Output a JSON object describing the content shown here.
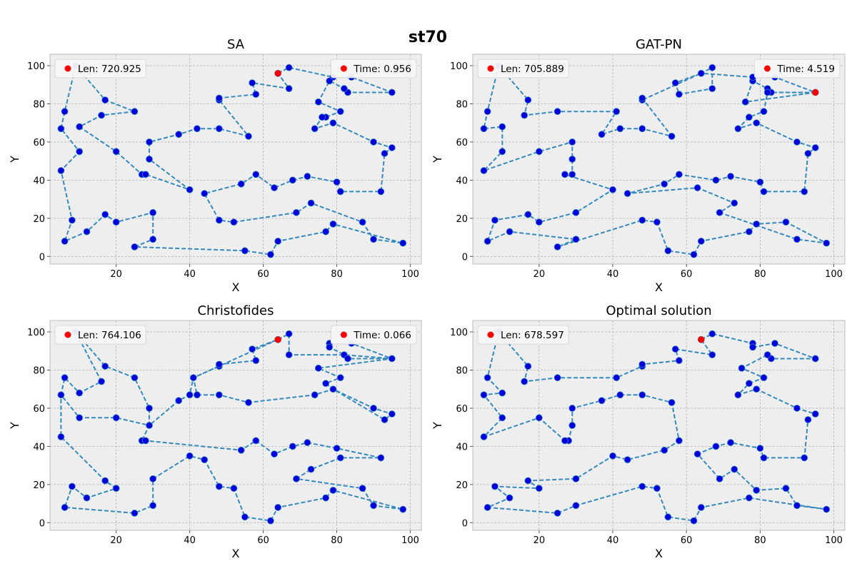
{
  "figure": {
    "suptitle": "st70",
    "colors": {
      "axes_bg": "#EEEEEE",
      "grid": "#B5B5B5",
      "spine": "#BCBCBC",
      "route": "#348ABD",
      "city": "#0000DD",
      "depot": "#FF0000",
      "legend_bg": "#F7F7F7",
      "text": "#000000"
    }
  },
  "chart_data": [
    {
      "type": "scatter",
      "title": "SA",
      "xlabel": "X",
      "ylabel": "Y",
      "xlim": [
        2,
        103
      ],
      "ylim": [
        -4,
        106
      ],
      "xticks": [
        20,
        40,
        60,
        80,
        100
      ],
      "yticks": [
        0,
        20,
        40,
        60,
        80,
        100
      ],
      "grid": true,
      "legend": [
        {
          "label": "Len: 720.925",
          "placement": "upper-left"
        },
        {
          "label": "Time: 0.956",
          "placement": "upper-right"
        }
      ],
      "depot": [
        64,
        96
      ],
      "route": [
        [
          64,
          96
        ],
        [
          67,
          99
        ],
        [
          79,
          94
        ],
        [
          84,
          94
        ],
        [
          95,
          86
        ],
        [
          83,
          86
        ],
        [
          82,
          88
        ],
        [
          78,
          92
        ],
        [
          75,
          81
        ],
        [
          81,
          76
        ],
        [
          77,
          73
        ],
        [
          76,
          73
        ],
        [
          74,
          67
        ],
        [
          79,
          70
        ],
        [
          90,
          60
        ],
        [
          95,
          57
        ],
        [
          93,
          54
        ],
        [
          92,
          34
        ],
        [
          81,
          34
        ],
        [
          80,
          39
        ],
        [
          72,
          42
        ],
        [
          68,
          40
        ],
        [
          63,
          36
        ],
        [
          58,
          43
        ],
        [
          54,
          38
        ],
        [
          44,
          33
        ],
        [
          48,
          19
        ],
        [
          52,
          18
        ],
        [
          69,
          23
        ],
        [
          73,
          28
        ],
        [
          87,
          18
        ],
        [
          90,
          9
        ],
        [
          98,
          7
        ],
        [
          79,
          17
        ],
        [
          77,
          13
        ],
        [
          64,
          8
        ],
        [
          62,
          1
        ],
        [
          55,
          3
        ],
        [
          25,
          5
        ],
        [
          30,
          9
        ],
        [
          30,
          23
        ],
        [
          20,
          18
        ],
        [
          17,
          22
        ],
        [
          12,
          13
        ],
        [
          6,
          8
        ],
        [
          8,
          19
        ],
        [
          5,
          45
        ],
        [
          10,
          55
        ],
        [
          5,
          67
        ],
        [
          6,
          76
        ],
        [
          9,
          100
        ],
        [
          17,
          82
        ],
        [
          25,
          76
        ],
        [
          16,
          74
        ],
        [
          10,
          68
        ],
        [
          20,
          55
        ],
        [
          27,
          43
        ],
        [
          28,
          43
        ],
        [
          40,
          35
        ],
        [
          29,
          51
        ],
        [
          29,
          60
        ],
        [
          37,
          64
        ],
        [
          42,
          67
        ],
        [
          48,
          67
        ],
        [
          56,
          63
        ],
        [
          48,
          82
        ],
        [
          48,
          83
        ],
        [
          58,
          85
        ],
        [
          57,
          91
        ],
        [
          67,
          88
        ],
        [
          64,
          96
        ]
      ]
    },
    {
      "type": "scatter",
      "title": "GAT-PN",
      "xlabel": "X",
      "ylabel": "Y",
      "xlim": [
        2,
        103
      ],
      "ylim": [
        -4,
        106
      ],
      "xticks": [
        20,
        40,
        60,
        80,
        100
      ],
      "yticks": [
        0,
        20,
        40,
        60,
        80,
        100
      ],
      "grid": true,
      "legend": [
        {
          "label": "Len: 705.889",
          "placement": "upper-left"
        },
        {
          "label": "Time: 4.519",
          "placement": "upper-right"
        }
      ],
      "depot": [
        95,
        86
      ],
      "route": [
        [
          95,
          86
        ],
        [
          83,
          86
        ],
        [
          82,
          88
        ],
        [
          78,
          92
        ],
        [
          78,
          94
        ],
        [
          84,
          94
        ],
        [
          95,
          86
        ],
        [
          76,
          81
        ],
        [
          78,
          92
        ],
        [
          78,
          94
        ],
        [
          64,
          96
        ],
        [
          67,
          99
        ],
        [
          67,
          88
        ],
        [
          58,
          85
        ],
        [
          57,
          91
        ],
        [
          64,
          96
        ],
        [
          48,
          82
        ],
        [
          48,
          83
        ],
        [
          56,
          63
        ],
        [
          48,
          67
        ],
        [
          42,
          67
        ],
        [
          37,
          64
        ],
        [
          41,
          76
        ],
        [
          25,
          76
        ],
        [
          16,
          74
        ],
        [
          17,
          82
        ],
        [
          9,
          100
        ],
        [
          6,
          76
        ],
        [
          5,
          67
        ],
        [
          10,
          68
        ],
        [
          10,
          55
        ],
        [
          5,
          45
        ],
        [
          20,
          55
        ],
        [
          29,
          60
        ],
        [
          29,
          51
        ],
        [
          29,
          43
        ],
        [
          27,
          43
        ],
        [
          40,
          35
        ],
        [
          30,
          23
        ],
        [
          20,
          18
        ],
        [
          17,
          22
        ],
        [
          8,
          19
        ],
        [
          6,
          8
        ],
        [
          12,
          13
        ],
        [
          30,
          9
        ],
        [
          25,
          5
        ],
        [
          48,
          19
        ],
        [
          52,
          18
        ],
        [
          55,
          3
        ],
        [
          62,
          1
        ],
        [
          64,
          8
        ],
        [
          77,
          13
        ],
        [
          79,
          17
        ],
        [
          87,
          18
        ],
        [
          98,
          7
        ],
        [
          90,
          9
        ],
        [
          69,
          23
        ],
        [
          73,
          28
        ],
        [
          63,
          36
        ],
        [
          44,
          33
        ],
        [
          54,
          38
        ],
        [
          58,
          43
        ],
        [
          68,
          40
        ],
        [
          72,
          42
        ],
        [
          80,
          39
        ],
        [
          81,
          34
        ],
        [
          92,
          34
        ],
        [
          93,
          54
        ],
        [
          95,
          57
        ],
        [
          90,
          60
        ],
        [
          79,
          70
        ],
        [
          74,
          67
        ],
        [
          77,
          73
        ],
        [
          81,
          76
        ],
        [
          82,
          86
        ],
        [
          95,
          86
        ]
      ]
    },
    {
      "type": "scatter",
      "title": "Christofides",
      "xlabel": "X",
      "ylabel": "Y",
      "xlim": [
        2,
        103
      ],
      "ylim": [
        -4,
        106
      ],
      "xticks": [
        20,
        40,
        60,
        80,
        100
      ],
      "yticks": [
        0,
        20,
        40,
        60,
        80,
        100
      ],
      "grid": true,
      "legend": [
        {
          "label": "Len: 764.106",
          "placement": "upper-left"
        },
        {
          "label": "Time: 0.066",
          "placement": "upper-right"
        }
      ],
      "depot": [
        64,
        96
      ],
      "route": [
        [
          64,
          96
        ],
        [
          67,
          99
        ],
        [
          67,
          88
        ],
        [
          82,
          88
        ],
        [
          83,
          86
        ],
        [
          95,
          86
        ],
        [
          84,
          94
        ],
        [
          78,
          94
        ],
        [
          78,
          92
        ],
        [
          82,
          88
        ],
        [
          95,
          86
        ],
        [
          75,
          81
        ],
        [
          81,
          76
        ],
        [
          77,
          73
        ],
        [
          79,
          70
        ],
        [
          90,
          60
        ],
        [
          95,
          57
        ],
        [
          93,
          54
        ],
        [
          79,
          70
        ],
        [
          74,
          67
        ],
        [
          56,
          63
        ],
        [
          48,
          67
        ],
        [
          42,
          67
        ],
        [
          41,
          76
        ],
        [
          48,
          82
        ],
        [
          48,
          83
        ],
        [
          58,
          85
        ],
        [
          57,
          91
        ],
        [
          64,
          96
        ],
        [
          41,
          76
        ],
        [
          40,
          67
        ],
        [
          37,
          64
        ],
        [
          29,
          51
        ],
        [
          29,
          60
        ],
        [
          25,
          76
        ],
        [
          17,
          82
        ],
        [
          9,
          100
        ],
        [
          16,
          74
        ],
        [
          10,
          68
        ],
        [
          6,
          76
        ],
        [
          5,
          67
        ],
        [
          10,
          55
        ],
        [
          20,
          55
        ],
        [
          29,
          51
        ],
        [
          27,
          43
        ],
        [
          28,
          43
        ],
        [
          54,
          38
        ],
        [
          58,
          43
        ],
        [
          63,
          36
        ],
        [
          68,
          40
        ],
        [
          72,
          42
        ],
        [
          80,
          39
        ],
        [
          92,
          34
        ],
        [
          81,
          34
        ],
        [
          73,
          28
        ],
        [
          69,
          23
        ],
        [
          87,
          18
        ],
        [
          90,
          9
        ],
        [
          98,
          7
        ],
        [
          79,
          17
        ],
        [
          77,
          13
        ],
        [
          64,
          8
        ],
        [
          62,
          1
        ],
        [
          55,
          3
        ],
        [
          52,
          18
        ],
        [
          48,
          19
        ],
        [
          44,
          33
        ],
        [
          40,
          35
        ],
        [
          30,
          23
        ],
        [
          30,
          9
        ],
        [
          25,
          5
        ],
        [
          6,
          8
        ],
        [
          8,
          19
        ],
        [
          12,
          13
        ],
        [
          20,
          18
        ],
        [
          17,
          22
        ],
        [
          5,
          45
        ],
        [
          5,
          67
        ]
      ]
    },
    {
      "type": "scatter",
      "title": "Optimal solution",
      "xlabel": "X",
      "ylabel": "Y",
      "xlim": [
        2,
        103
      ],
      "ylim": [
        -4,
        106
      ],
      "xticks": [
        20,
        40,
        60,
        80,
        100
      ],
      "yticks": [
        0,
        20,
        40,
        60,
        80,
        100
      ],
      "grid": true,
      "legend": [
        {
          "label": "Len: 678.597",
          "placement": "upper-left"
        }
      ],
      "depot": [
        64,
        96
      ],
      "route": [
        [
          64,
          96
        ],
        [
          67,
          99
        ],
        [
          78,
          94
        ],
        [
          78,
          92
        ],
        [
          84,
          94
        ],
        [
          95,
          86
        ],
        [
          83,
          86
        ],
        [
          82,
          88
        ],
        [
          75,
          81
        ],
        [
          81,
          76
        ],
        [
          77,
          73
        ],
        [
          74,
          67
        ],
        [
          79,
          70
        ],
        [
          90,
          60
        ],
        [
          95,
          57
        ],
        [
          93,
          54
        ],
        [
          92,
          34
        ],
        [
          81,
          34
        ],
        [
          80,
          39
        ],
        [
          72,
          42
        ],
        [
          68,
          40
        ],
        [
          63,
          36
        ],
        [
          69,
          23
        ],
        [
          73,
          28
        ],
        [
          79,
          17
        ],
        [
          87,
          18
        ],
        [
          90,
          9
        ],
        [
          98,
          7
        ],
        [
          77,
          13
        ],
        [
          64,
          8
        ],
        [
          62,
          1
        ],
        [
          55,
          3
        ],
        [
          52,
          18
        ],
        [
          48,
          19
        ],
        [
          30,
          9
        ],
        [
          25,
          5
        ],
        [
          6,
          8
        ],
        [
          12,
          13
        ],
        [
          8,
          19
        ],
        [
          20,
          18
        ],
        [
          17,
          22
        ],
        [
          30,
          23
        ],
        [
          40,
          35
        ],
        [
          44,
          33
        ],
        [
          54,
          38
        ],
        [
          58,
          43
        ],
        [
          56,
          63
        ],
        [
          48,
          67
        ],
        [
          42,
          67
        ],
        [
          37,
          64
        ],
        [
          29,
          60
        ],
        [
          29,
          51
        ],
        [
          28,
          43
        ],
        [
          27,
          43
        ],
        [
          20,
          55
        ],
        [
          5,
          45
        ],
        [
          10,
          55
        ],
        [
          5,
          67
        ],
        [
          10,
          68
        ],
        [
          6,
          76
        ],
        [
          9,
          100
        ],
        [
          17,
          82
        ],
        [
          16,
          74
        ],
        [
          25,
          76
        ],
        [
          41,
          76
        ],
        [
          48,
          82
        ],
        [
          48,
          83
        ],
        [
          58,
          85
        ],
        [
          57,
          91
        ],
        [
          67,
          88
        ],
        [
          64,
          96
        ]
      ]
    }
  ]
}
